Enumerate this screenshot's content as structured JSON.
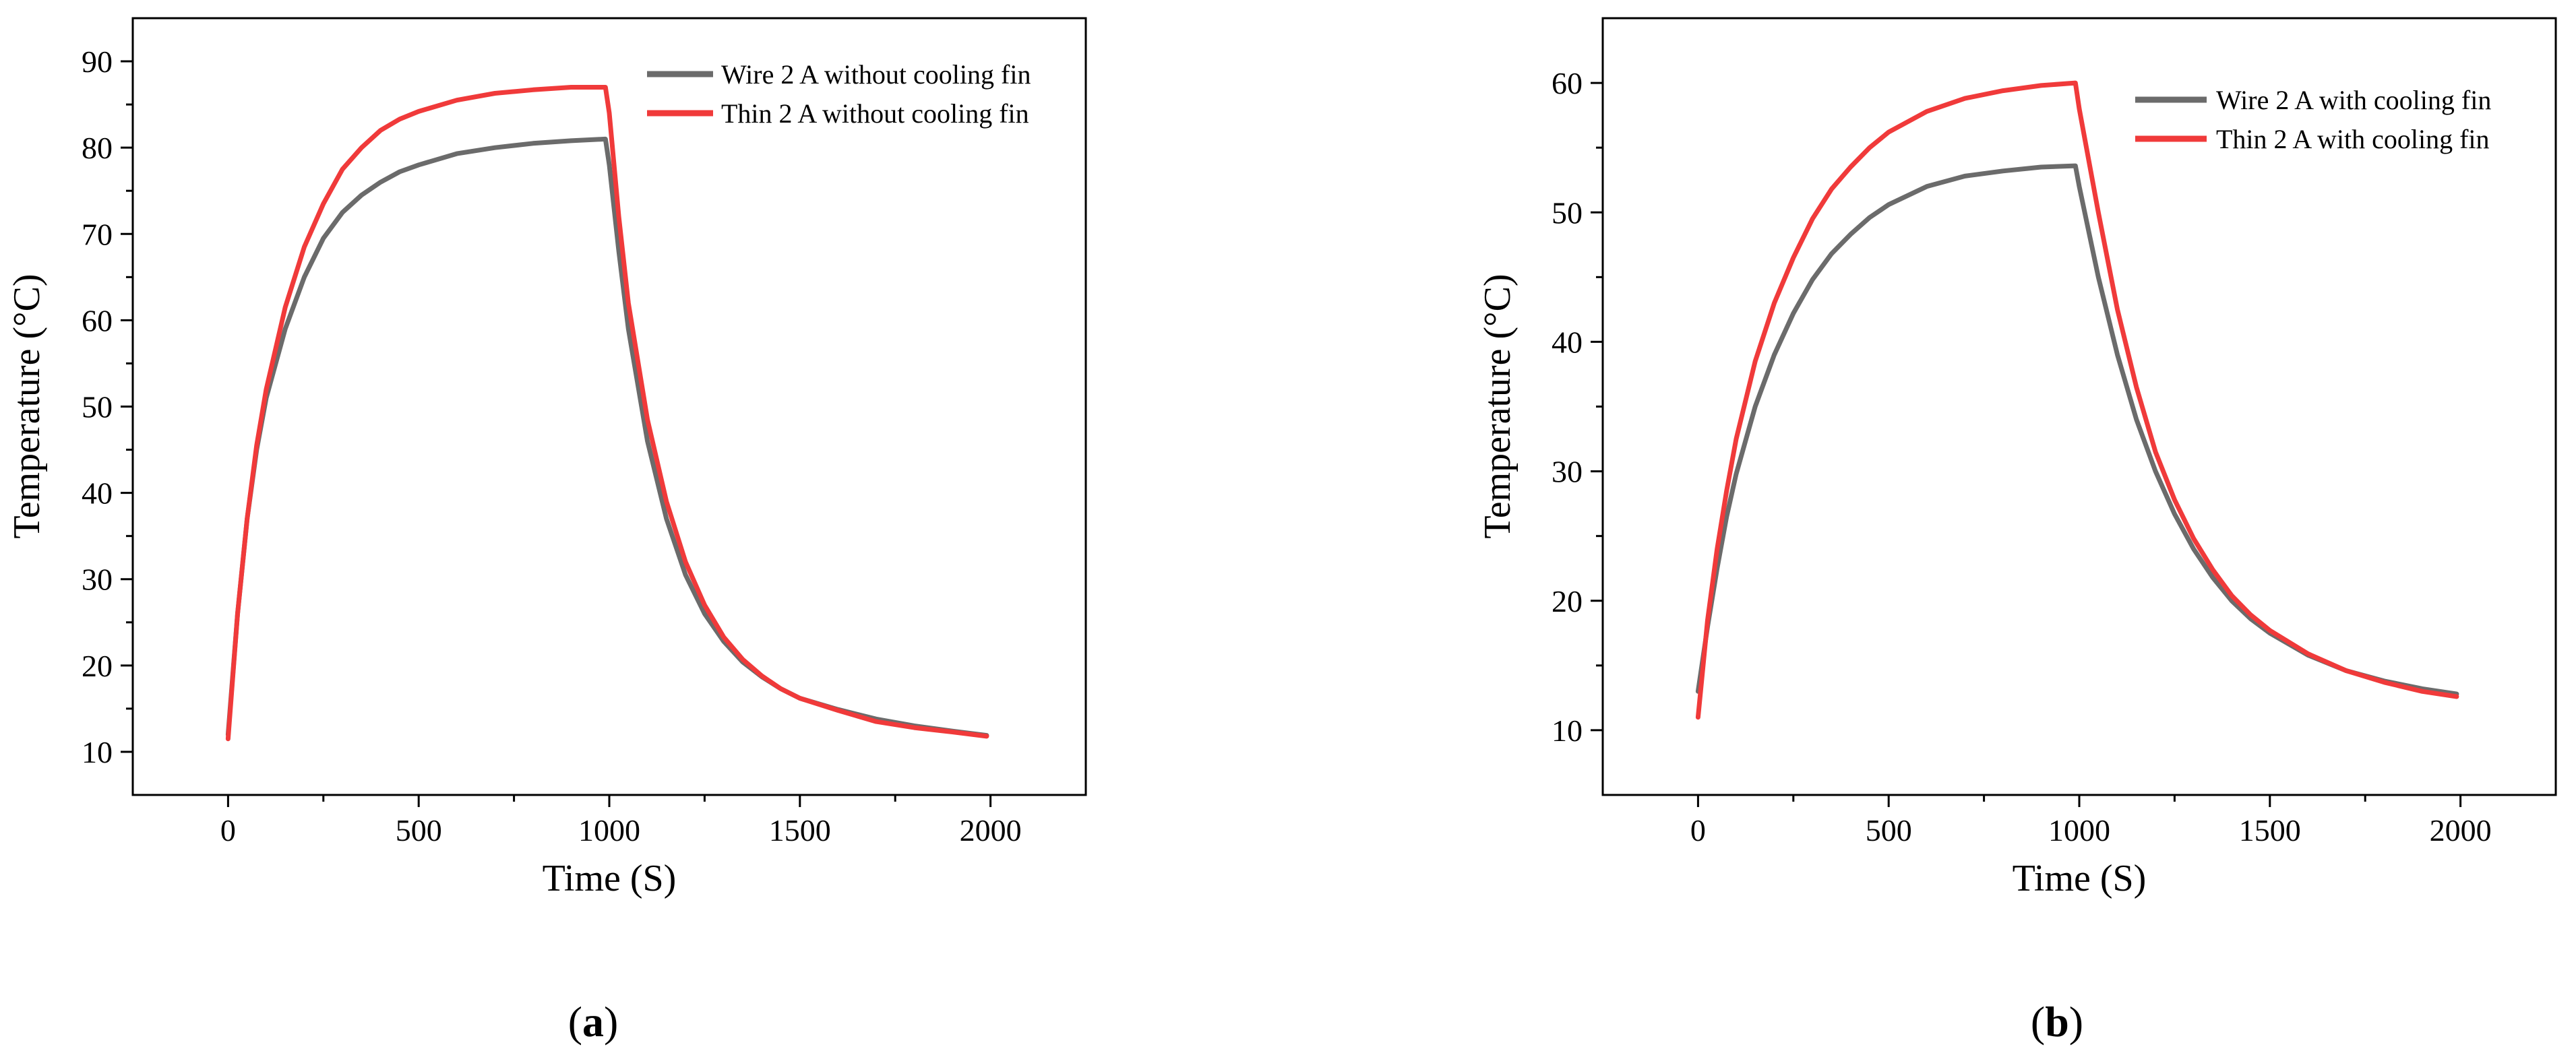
{
  "colors": {
    "wire": "#6b6b6b",
    "thin": "#f03a3a",
    "axis": "#000000"
  },
  "chart_data": [
    {
      "type": "line",
      "panel_label": "a",
      "title": "",
      "xlabel": "Time (S)",
      "ylabel": "Temperature (°C)",
      "xlim": [
        -250,
        2250
      ],
      "ylim": [
        5,
        95
      ],
      "xticks": [
        0,
        500,
        1000,
        1500,
        2000
      ],
      "yticks": [
        10,
        20,
        30,
        40,
        50,
        60,
        70,
        80,
        90
      ],
      "legend_position": "top-right",
      "series": [
        {
          "name": "Wire 2 A without cooling fin",
          "color": "#6b6b6b",
          "points": [
            [
              0,
              12
            ],
            [
              25,
              26
            ],
            [
              50,
              37
            ],
            [
              75,
              45
            ],
            [
              100,
              51
            ],
            [
              150,
              59
            ],
            [
              200,
              65
            ],
            [
              250,
              69.5
            ],
            [
              300,
              72.5
            ],
            [
              350,
              74.5
            ],
            [
              400,
              76
            ],
            [
              450,
              77.2
            ],
            [
              500,
              78
            ],
            [
              600,
              79.3
            ],
            [
              700,
              80
            ],
            [
              800,
              80.5
            ],
            [
              900,
              80.8
            ],
            [
              990,
              81
            ],
            [
              1000,
              78
            ],
            [
              1025,
              68
            ],
            [
              1050,
              59
            ],
            [
              1100,
              46
            ],
            [
              1150,
              37
            ],
            [
              1200,
              30.5
            ],
            [
              1250,
              26
            ],
            [
              1300,
              22.8
            ],
            [
              1350,
              20.4
            ],
            [
              1400,
              18.7
            ],
            [
              1450,
              17.3
            ],
            [
              1500,
              16.2
            ],
            [
              1600,
              14.9
            ],
            [
              1700,
              13.8
            ],
            [
              1800,
              13
            ],
            [
              1900,
              12.4
            ],
            [
              1990,
              11.9
            ]
          ]
        },
        {
          "name": "Thin 2 A without cooling fin",
          "color": "#f03a3a",
          "points": [
            [
              0,
              11.5
            ],
            [
              25,
              26
            ],
            [
              50,
              37
            ],
            [
              75,
              45.5
            ],
            [
              100,
              52
            ],
            [
              150,
              61.5
            ],
            [
              200,
              68.5
            ],
            [
              250,
              73.5
            ],
            [
              300,
              77.5
            ],
            [
              350,
              80
            ],
            [
              400,
              82
            ],
            [
              450,
              83.3
            ],
            [
              500,
              84.2
            ],
            [
              600,
              85.5
            ],
            [
              700,
              86.3
            ],
            [
              800,
              86.7
            ],
            [
              900,
              87
            ],
            [
              990,
              87
            ],
            [
              1000,
              84
            ],
            [
              1025,
              72
            ],
            [
              1050,
              62
            ],
            [
              1100,
              48.5
            ],
            [
              1150,
              39
            ],
            [
              1200,
              32
            ],
            [
              1250,
              27
            ],
            [
              1300,
              23.3
            ],
            [
              1350,
              20.7
            ],
            [
              1400,
              18.8
            ],
            [
              1450,
              17.3
            ],
            [
              1500,
              16.2
            ],
            [
              1600,
              14.8
            ],
            [
              1700,
              13.5
            ],
            [
              1800,
              12.8
            ],
            [
              1900,
              12.3
            ],
            [
              1990,
              11.8
            ]
          ]
        }
      ]
    },
    {
      "type": "line",
      "panel_label": "b",
      "title": "",
      "xlabel": "Time (S)",
      "ylabel": "Temperature (°C)",
      "xlim": [
        -250,
        2250
      ],
      "ylim": [
        5,
        65
      ],
      "xticks": [
        0,
        500,
        1000,
        1500,
        2000
      ],
      "yticks": [
        10,
        20,
        30,
        40,
        50,
        60
      ],
      "legend_position": "top-right",
      "series": [
        {
          "name": "Wire 2 A with cooling fin",
          "color": "#6b6b6b",
          "points": [
            [
              0,
              13
            ],
            [
              25,
              18
            ],
            [
              50,
              22.5
            ],
            [
              75,
              26.5
            ],
            [
              100,
              29.8
            ],
            [
              150,
              35
            ],
            [
              200,
              39
            ],
            [
              250,
              42.2
            ],
            [
              300,
              44.8
            ],
            [
              350,
              46.8
            ],
            [
              400,
              48.3
            ],
            [
              450,
              49.6
            ],
            [
              500,
              50.6
            ],
            [
              600,
              52
            ],
            [
              700,
              52.8
            ],
            [
              800,
              53.2
            ],
            [
              900,
              53.5
            ],
            [
              990,
              53.6
            ],
            [
              1000,
              52
            ],
            [
              1050,
              45
            ],
            [
              1100,
              39
            ],
            [
              1150,
              34
            ],
            [
              1200,
              30
            ],
            [
              1250,
              26.7
            ],
            [
              1300,
              24
            ],
            [
              1350,
              21.8
            ],
            [
              1400,
              20
            ],
            [
              1450,
              18.6
            ],
            [
              1500,
              17.5
            ],
            [
              1600,
              15.8
            ],
            [
              1700,
              14.6
            ],
            [
              1800,
              13.8
            ],
            [
              1900,
              13.2
            ],
            [
              1990,
              12.8
            ]
          ]
        },
        {
          "name": "Thin 2 A with cooling fin",
          "color": "#f03a3a",
          "points": [
            [
              0,
              11
            ],
            [
              25,
              18.5
            ],
            [
              50,
              24
            ],
            [
              75,
              28.5
            ],
            [
              100,
              32.5
            ],
            [
              150,
              38.5
            ],
            [
              200,
              43
            ],
            [
              250,
              46.5
            ],
            [
              300,
              49.5
            ],
            [
              350,
              51.8
            ],
            [
              400,
              53.5
            ],
            [
              450,
              55
            ],
            [
              500,
              56.2
            ],
            [
              600,
              57.8
            ],
            [
              700,
              58.8
            ],
            [
              800,
              59.4
            ],
            [
              900,
              59.8
            ],
            [
              990,
              60
            ],
            [
              1000,
              58
            ],
            [
              1050,
              50
            ],
            [
              1100,
              42.5
            ],
            [
              1150,
              36.5
            ],
            [
              1200,
              31.5
            ],
            [
              1250,
              27.8
            ],
            [
              1300,
              24.8
            ],
            [
              1350,
              22.4
            ],
            [
              1400,
              20.4
            ],
            [
              1450,
              18.9
            ],
            [
              1500,
              17.7
            ],
            [
              1600,
              15.9
            ],
            [
              1700,
              14.6
            ],
            [
              1800,
              13.7
            ],
            [
              1900,
              13
            ],
            [
              1990,
              12.6
            ]
          ]
        }
      ]
    }
  ]
}
